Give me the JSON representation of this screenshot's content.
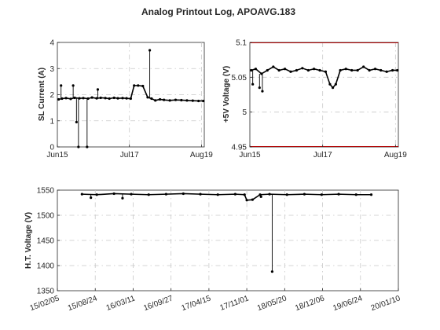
{
  "figure": {
    "title": "Analog Printout Log, APOAVG.183"
  },
  "chart_data": [
    {
      "type": "line",
      "id": "sl-current",
      "xlabel": "",
      "ylabel": "SL Current (A)",
      "x_tick_labels": [
        "Jun15",
        "Jul17",
        "Aug19"
      ],
      "x_tick_values": [
        "2015-06",
        "2017-07",
        "2019-08"
      ],
      "xlim": [
        "2015-06-01",
        "2019-08-31"
      ],
      "ylim": [
        0,
        4
      ],
      "y_ticks": [
        0,
        1,
        2,
        3,
        4
      ],
      "y_tick_labels": [
        "0",
        "1",
        "2",
        "3",
        "4"
      ],
      "grid": true,
      "series": [
        {
          "color": "#000000",
          "x": [
            "2015-06-15",
            "2015-07-20",
            "2015-09-01",
            "2015-10-20",
            "2015-12-01",
            "2016-01-20",
            "2016-03-01",
            "2016-04-20",
            "2016-06-01",
            "2016-07-20",
            "2016-09-01",
            "2016-10-20",
            "2016-12-01",
            "2017-01-20",
            "2017-03-01",
            "2017-04-20",
            "2017-06-01",
            "2017-07-15",
            "2017-08-20",
            "2017-10-01",
            "2017-11-20",
            "2018-01-10",
            "2018-02-20",
            "2018-04-01",
            "2018-05-20",
            "2018-07-01",
            "2018-09-01",
            "2018-11-01",
            "2019-01-01",
            "2019-03-01",
            "2019-05-01",
            "2019-07-01",
            "2019-08-20"
          ],
          "values": [
            1.82,
            1.85,
            1.87,
            1.84,
            1.88,
            1.86,
            1.87,
            1.85,
            1.89,
            1.86,
            1.88,
            1.87,
            1.85,
            1.88,
            1.86,
            1.87,
            1.86,
            1.85,
            2.35,
            2.35,
            2.33,
            1.9,
            1.85,
            1.78,
            1.82,
            1.8,
            1.78,
            1.8,
            1.79,
            1.78,
            1.77,
            1.76,
            1.76
          ]
        }
      ],
      "annotations": [
        {
          "x": "2015-07-10",
          "y": 2.35
        },
        {
          "x": "2015-11-15",
          "y": 2.35
        },
        {
          "x": "2015-12-20",
          "y": 0.95
        },
        {
          "x": "2016-01-10",
          "y": 0
        },
        {
          "x": "2016-04-10",
          "y": 0
        },
        {
          "x": "2016-08-01",
          "y": 2.2
        },
        {
          "x": "2018-02-01",
          "y": 3.7
        }
      ]
    },
    {
      "type": "line",
      "id": "5v-voltage",
      "xlabel": "",
      "ylabel": "+5V Voltage (V)",
      "x_tick_labels": [
        "Jun15",
        "Jul17",
        "Aug19"
      ],
      "x_tick_values": [
        "2015-06",
        "2017-07",
        "2019-08"
      ],
      "xlim": [
        "2015-06-01",
        "2019-08-31"
      ],
      "ylim": [
        4.95,
        5.1
      ],
      "y_ticks": [
        4.95,
        5.0,
        5.05,
        5.1
      ],
      "y_tick_labels": [
        "4.95",
        "5",
        "5.05",
        "5.1"
      ],
      "grid": true,
      "series": [
        {
          "color": "#000000",
          "x": [
            "2015-06-15",
            "2015-08-01",
            "2015-10-01",
            "2015-12-01",
            "2016-02-01",
            "2016-04-01",
            "2016-06-01",
            "2016-08-01",
            "2016-10-01",
            "2016-12-01",
            "2017-02-01",
            "2017-04-01",
            "2017-06-01",
            "2017-08-01",
            "2017-09-15",
            "2017-10-15",
            "2017-11-15",
            "2018-01-01",
            "2018-03-01",
            "2018-05-01",
            "2018-07-01",
            "2018-09-01",
            "2018-11-01",
            "2019-01-01",
            "2019-03-01",
            "2019-05-01",
            "2019-07-01",
            "2019-08-20"
          ],
          "values": [
            5.06,
            5.062,
            5.055,
            5.06,
            5.065,
            5.06,
            5.062,
            5.058,
            5.06,
            5.063,
            5.06,
            5.062,
            5.06,
            5.058,
            5.04,
            5.035,
            5.04,
            5.06,
            5.062,
            5.06,
            5.06,
            5.065,
            5.06,
            5.062,
            5.06,
            5.058,
            5.06,
            5.06
          ]
        }
      ],
      "annotations": [
        {
          "x": "2015-07-01",
          "y": 5.04
        },
        {
          "x": "2015-09-10",
          "y": 5.035
        },
        {
          "x": "2015-10-10",
          "y": 5.03
        }
      ]
    },
    {
      "type": "line",
      "id": "ht-voltage",
      "xlabel": "",
      "ylabel": "H.T. Voltage (V)",
      "x_tick_labels": [
        "15/02/05",
        "15/08/24",
        "16/03/11",
        "16/09/27",
        "17/04/15",
        "17/11/01",
        "18/05/20",
        "18/12/06",
        "19/06/24",
        "20/01/10"
      ],
      "x_tick_values": [
        "2015-02-05",
        "2015-08-24",
        "2016-03-11",
        "2016-09-27",
        "2017-04-15",
        "2017-11-01",
        "2018-05-20",
        "2018-12-06",
        "2019-06-24",
        "2020-01-10"
      ],
      "xlim": [
        "2015-02-05",
        "2020-01-10"
      ],
      "ylim": [
        1350,
        1550
      ],
      "y_ticks": [
        1350,
        1400,
        1450,
        1500,
        1550
      ],
      "y_tick_labels": [
        "1350",
        "1400",
        "1450",
        "1500",
        "1550"
      ],
      "grid": true,
      "series": [
        {
          "color": "#000000",
          "x": [
            "2015-06-15",
            "2015-09-01",
            "2015-12-01",
            "2016-03-01",
            "2016-06-01",
            "2016-09-01",
            "2016-12-01",
            "2017-03-01",
            "2017-06-01",
            "2017-09-01",
            "2017-10-20",
            "2017-11-01",
            "2017-12-01",
            "2018-01-10",
            "2018-03-01",
            "2018-06-01",
            "2018-09-01",
            "2018-12-01",
            "2019-03-01",
            "2019-06-01",
            "2019-08-20"
          ],
          "values": [
            1542,
            1541,
            1543,
            1542,
            1541,
            1542,
            1543,
            1542,
            1541,
            1542,
            1541,
            1530,
            1531,
            1541,
            1542,
            1541,
            1542,
            1541,
            1542,
            1541,
            1541
          ]
        }
      ],
      "annotations": [
        {
          "x": "2018-03-15",
          "y": 1388
        },
        {
          "x": "2015-08-01",
          "y": 1535
        },
        {
          "x": "2016-01-15",
          "y": 1534
        },
        {
          "x": "2018-01-15",
          "y": 1537
        }
      ]
    }
  ]
}
